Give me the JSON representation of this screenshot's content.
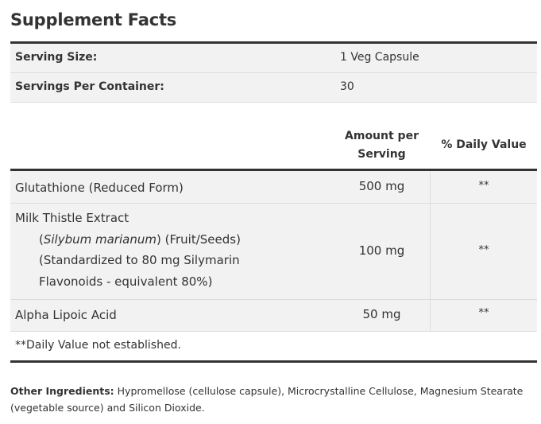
{
  "title": "Supplement Facts",
  "serving": [
    {
      "label": "Serving Size:",
      "value": "1 Veg Capsule"
    },
    {
      "label": "Servings Per Container:",
      "value": "30"
    }
  ],
  "headers": {
    "amount_line1": "Amount per",
    "amount_line2": "Serving",
    "daily_value": "% Daily Value"
  },
  "ingredients": [
    {
      "name": "Glutathione (Reduced Form)",
      "amount": "500 mg",
      "dv": "**"
    },
    {
      "name": "Milk Thistle Extract",
      "latin": "Silybum marianum",
      "part": ") (Fruit/Seeds)",
      "std1": "(Standardized to 80 mg Silymarin",
      "std2": "Flavonoids - equivalent 80%)",
      "amount": "100 mg",
      "dv": "**"
    },
    {
      "name": "Alpha Lipoic Acid",
      "amount": "50 mg",
      "dv": "**"
    }
  ],
  "footnote": "**Daily Value not established.",
  "other_ingredients": {
    "label": "Other Ingredients:",
    "text": " Hypromellose (cellulose capsule), Microcrystalline Cellulose, Magnesium Stearate (vegetable source) and Silicon Dioxide."
  }
}
